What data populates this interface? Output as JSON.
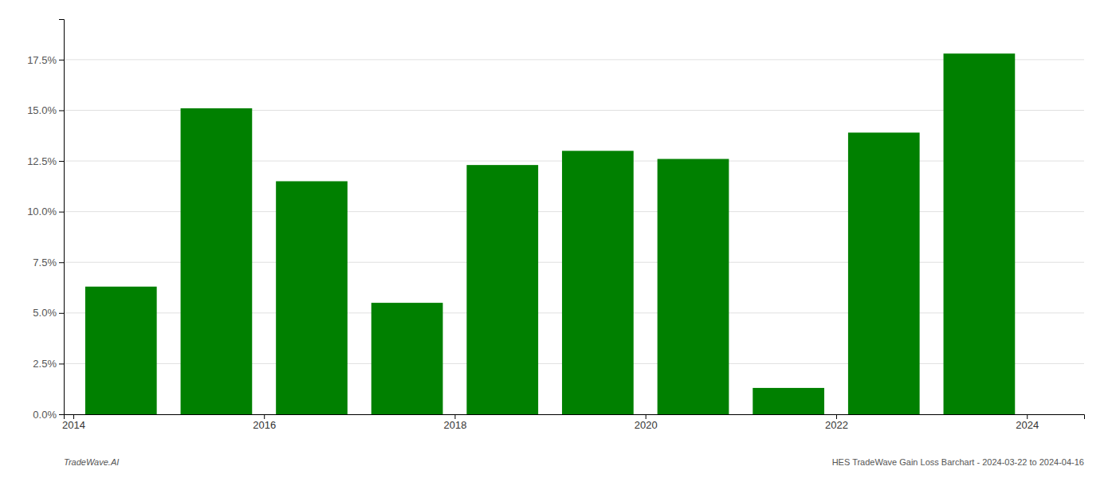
{
  "chart_data": {
    "type": "bar",
    "x": [
      2014.5,
      2015.5,
      2016.5,
      2017.5,
      2018.5,
      2019.5,
      2020.5,
      2021.5,
      2022.5,
      2023.5
    ],
    "values": [
      0.063,
      0.151,
      0.115,
      0.055,
      0.123,
      0.13,
      0.126,
      0.013,
      0.139,
      0.178
    ],
    "color": "#008000",
    "xlim": [
      2013.9,
      2024.6
    ],
    "xticks": [
      2014,
      2016,
      2018,
      2020,
      2022,
      2024
    ],
    "ylim": [
      0,
      0.195
    ],
    "yticks": [
      {
        "value": 0.0,
        "label": "0.0%"
      },
      {
        "value": 0.025,
        "label": "2.5%"
      },
      {
        "value": 0.05,
        "label": "5.0%"
      },
      {
        "value": 0.075,
        "label": "7.5%"
      },
      {
        "value": 0.1,
        "label": "10.0%"
      },
      {
        "value": 0.125,
        "label": "12.5%"
      },
      {
        "value": 0.15,
        "label": "15.0%"
      },
      {
        "value": 0.175,
        "label": "17.5%"
      }
    ],
    "grid": true,
    "annotations": [
      "TradeWave.AI",
      "HES TradeWave Gain Loss Barchart - 2024-03-22 to 2024-04-16"
    ]
  }
}
